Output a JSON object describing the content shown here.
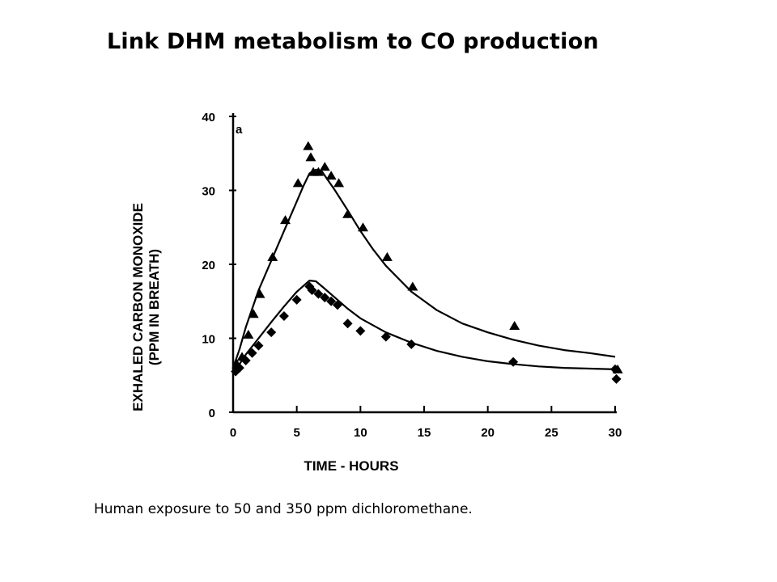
{
  "slide": {
    "title": "Link DHM metabolism to CO production",
    "caption": "Human exposure to 50 and 350 ppm dichloromethane."
  },
  "chart_data": {
    "type": "scatter",
    "panel_label": "a",
    "xlabel": "TIME - HOURS",
    "ylabel_line1": "EXHALED CARBON MONOXIDE",
    "ylabel_line2": "(PPM IN BREATH)",
    "xlim": [
      0,
      30
    ],
    "ylim": [
      0,
      40
    ],
    "xticks": [
      0,
      5,
      10,
      15,
      20,
      25,
      30
    ],
    "yticks": [
      0,
      10,
      20,
      30,
      40
    ],
    "grid": false,
    "legend": "none",
    "series": [
      {
        "marker": "triangle",
        "points": [
          [
            0.3,
            6.5
          ],
          [
            0.7,
            7.5
          ],
          [
            1.2,
            10.5
          ],
          [
            1.6,
            13.3
          ],
          [
            2.1,
            16
          ],
          [
            3.1,
            21
          ],
          [
            4.1,
            26
          ],
          [
            5.1,
            31
          ],
          [
            5.9,
            36
          ],
          [
            6.1,
            34.5
          ],
          [
            6.3,
            32.5
          ],
          [
            6.7,
            32.5
          ],
          [
            7.2,
            33.2
          ],
          [
            7.7,
            32
          ],
          [
            8.3,
            31
          ],
          [
            9,
            26.8
          ],
          [
            10.2,
            25
          ],
          [
            12.1,
            21
          ],
          [
            14.1,
            17
          ],
          [
            22.1,
            11.7
          ],
          [
            30.2,
            5.8
          ]
        ],
        "curve": [
          [
            0,
            6
          ],
          [
            0.5,
            8.5
          ],
          [
            1,
            11.5
          ],
          [
            1.5,
            14
          ],
          [
            2,
            16.5
          ],
          [
            3,
            20.5
          ],
          [
            4,
            24.5
          ],
          [
            5,
            28.5
          ],
          [
            5.5,
            30.5
          ],
          [
            6,
            32.3
          ],
          [
            6.5,
            32.8
          ],
          [
            7,
            32.5
          ],
          [
            8,
            30
          ],
          [
            9,
            27.3
          ],
          [
            10,
            24.5
          ],
          [
            11,
            22
          ],
          [
            12,
            19.8
          ],
          [
            14,
            16.3
          ],
          [
            16,
            13.8
          ],
          [
            18,
            12
          ],
          [
            20,
            10.8
          ],
          [
            22,
            9.8
          ],
          [
            24,
            9
          ],
          [
            26,
            8.4
          ],
          [
            28,
            8
          ],
          [
            30,
            7.5
          ]
        ]
      },
      {
        "marker": "diamond",
        "points": [
          [
            0.2,
            5.5
          ],
          [
            0.5,
            6
          ],
          [
            1,
            7
          ],
          [
            1.5,
            8
          ],
          [
            2,
            9
          ],
          [
            3,
            10.8
          ],
          [
            4,
            13
          ],
          [
            5,
            15.2
          ],
          [
            6,
            17
          ],
          [
            6.2,
            16.5
          ],
          [
            6.7,
            16
          ],
          [
            7.2,
            15.5
          ],
          [
            7.7,
            15
          ],
          [
            8.2,
            14.5
          ],
          [
            9,
            12
          ],
          [
            10,
            11
          ],
          [
            12,
            10.2
          ],
          [
            14,
            9.2
          ],
          [
            22,
            6.8
          ],
          [
            30,
            5.8
          ],
          [
            30.1,
            4.5
          ]
        ],
        "curve": [
          [
            0,
            5.5
          ],
          [
            0.5,
            6.5
          ],
          [
            1,
            7.8
          ],
          [
            2,
            10
          ],
          [
            3,
            12.2
          ],
          [
            4,
            14.3
          ],
          [
            5,
            16.3
          ],
          [
            6,
            17.8
          ],
          [
            6.5,
            17.7
          ],
          [
            7,
            17
          ],
          [
            8,
            15.5
          ],
          [
            9,
            14
          ],
          [
            10,
            12.7
          ],
          [
            12,
            10.8
          ],
          [
            14,
            9.4
          ],
          [
            16,
            8.3
          ],
          [
            18,
            7.5
          ],
          [
            20,
            6.9
          ],
          [
            22,
            6.5
          ],
          [
            24,
            6.2
          ],
          [
            26,
            6
          ],
          [
            28,
            5.9
          ],
          [
            30,
            5.8
          ]
        ]
      }
    ]
  }
}
